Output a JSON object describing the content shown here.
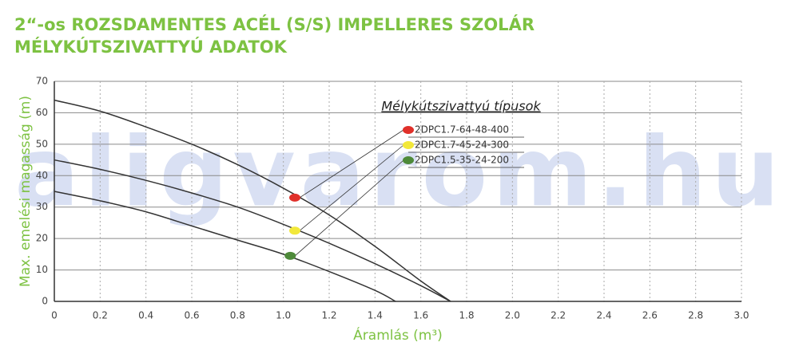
{
  "chart_data": {
    "type": "line",
    "title": [
      "2“-os  ROZSDAMENTES ACÉL (S/S) IMPELLERES SZOLÁR",
      "MÉLYKÚTSZIVATTYÚ ADATOK"
    ],
    "watermark": "aligvarom.hu",
    "x_label": "Áramlás (m³)",
    "y_label": "Max. emelési magasság (m)",
    "legend_title": "Mélykútszivattyú típusok",
    "xlim": [
      0,
      3.0
    ],
    "ylim": [
      0,
      70
    ],
    "xticks": [
      0,
      0.2,
      0.4,
      0.6,
      0.8,
      {
        "value": 1,
        "label": "1.0"
      },
      1.2,
      1.4,
      1.6,
      1.8,
      {
        "value": 2,
        "label": "2.0"
      },
      2.2,
      2.4,
      2.6,
      2.8,
      {
        "value": 3,
        "label": "3.0"
      }
    ],
    "yticks": [
      0,
      10,
      20,
      30,
      40,
      50,
      60,
      70
    ],
    "grid": true,
    "series": [
      {
        "name": "2DPC1.7-64-48-400",
        "color": "#e0302a",
        "x": [
          0,
          0.2,
          0.4,
          0.6,
          0.8,
          1.0,
          1.2,
          1.4,
          1.6,
          1.73
        ],
        "values": [
          64,
          60.5,
          55.5,
          50,
          43.5,
          36,
          27.5,
          17.5,
          6.5,
          0
        ],
        "marker_x": 1.05,
        "marker_y": 33
      },
      {
        "name": "2DPC1.7-45-24-300",
        "color": "#f2e83a",
        "x": [
          0,
          0.2,
          0.4,
          0.6,
          0.8,
          1.0,
          1.2,
          1.4,
          1.6,
          1.73
        ],
        "values": [
          45,
          42,
          38.5,
          34.5,
          30,
          24.5,
          18.5,
          12,
          5,
          0
        ],
        "marker_x": 1.05,
        "marker_y": 22.5
      },
      {
        "name": "2DPC1.5-35-24-200",
        "color": "#4e8a3a",
        "x": [
          0,
          0.2,
          0.4,
          0.6,
          0.8,
          1.0,
          1.2,
          1.4,
          1.49
        ],
        "values": [
          35,
          32,
          28.5,
          24,
          19.5,
          15,
          9.5,
          3.5,
          0
        ],
        "marker_x": 1.03,
        "marker_y": 14.5
      }
    ]
  }
}
